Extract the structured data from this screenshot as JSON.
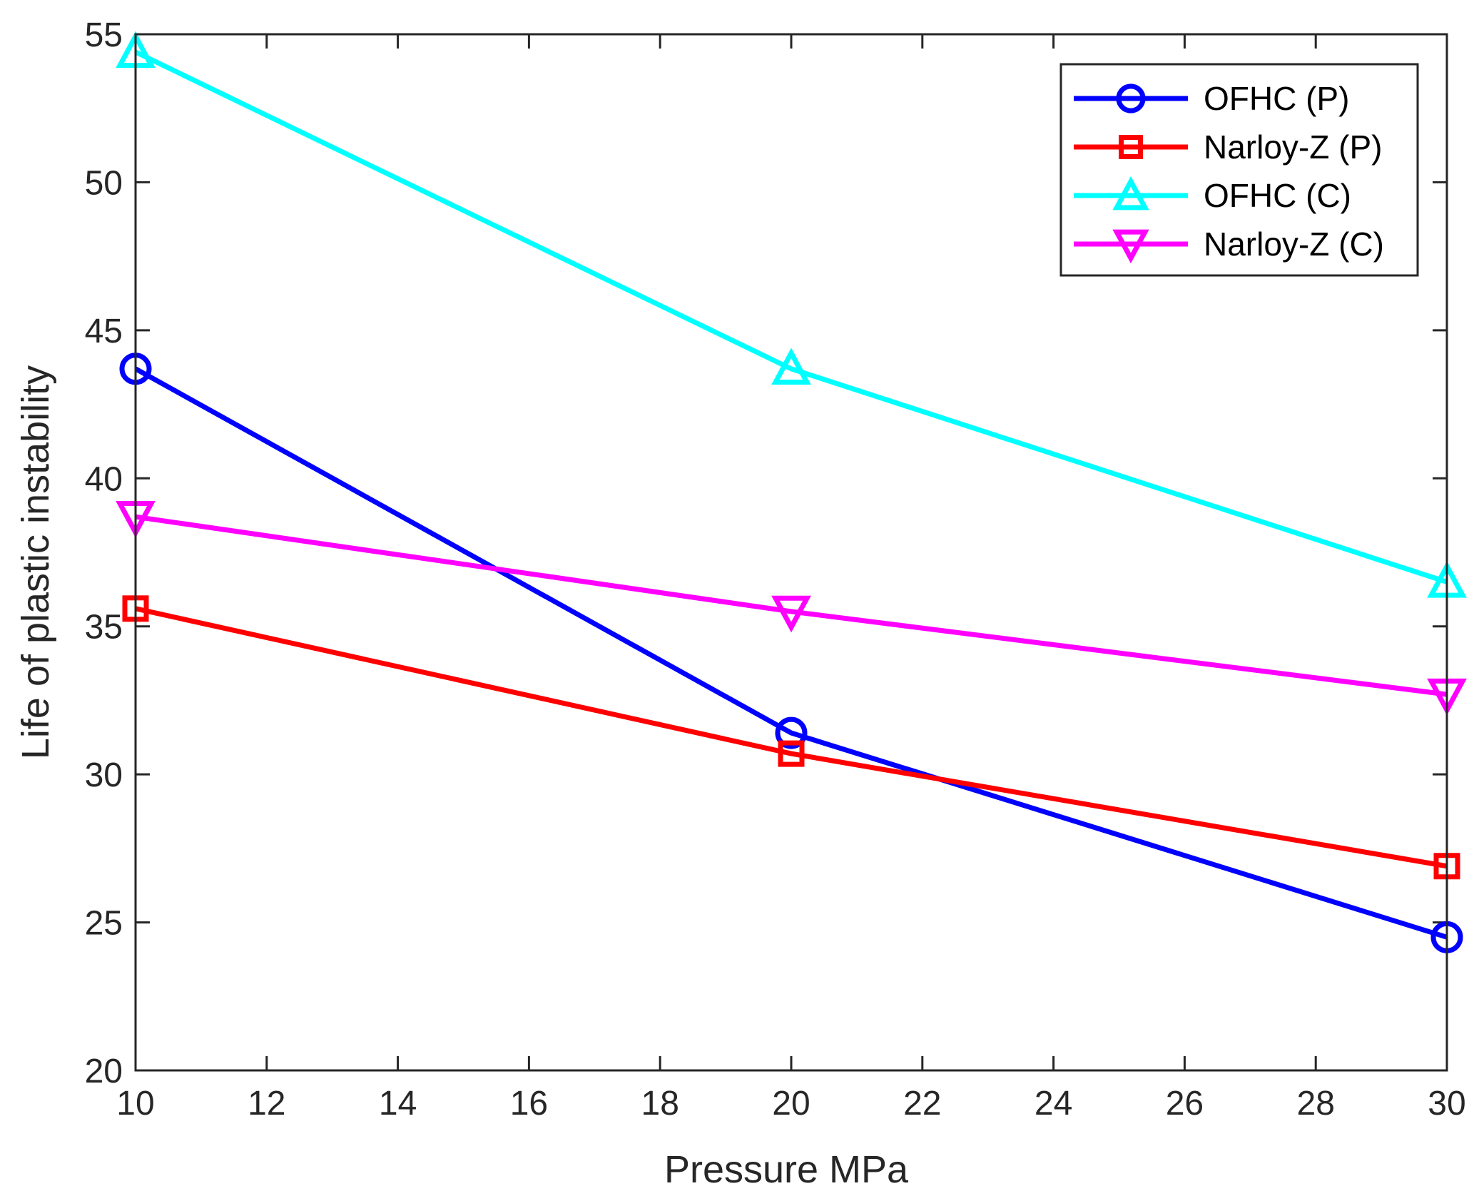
{
  "chart_data": {
    "type": "line",
    "title": "",
    "xlabel": "Pressure MPa",
    "ylabel": "Life of plastic instability",
    "xlim": [
      10,
      30
    ],
    "ylim": [
      20,
      55
    ],
    "xticks": [
      10,
      12,
      14,
      16,
      18,
      20,
      22,
      24,
      26,
      28,
      30
    ],
    "yticks": [
      20,
      25,
      30,
      35,
      40,
      45,
      50,
      55
    ],
    "grid": false,
    "legend_position": "top-right",
    "x": [
      10,
      20,
      30
    ],
    "series": [
      {
        "name": "OFHC (P)",
        "values": [
          43.7,
          31.4,
          24.5
        ],
        "color": "#0000ff",
        "marker": "circle"
      },
      {
        "name": "Narloy-Z (P)",
        "values": [
          35.6,
          30.7,
          26.9
        ],
        "color": "#ff0000",
        "marker": "square"
      },
      {
        "name": "OFHC (C)",
        "values": [
          54.4,
          43.7,
          36.5
        ],
        "color": "#00ffff",
        "marker": "triangle-up"
      },
      {
        "name": "Narloy-Z (C)",
        "values": [
          38.7,
          35.5,
          32.7
        ],
        "color": "#ff00ff",
        "marker": "triangle-down"
      }
    ]
  }
}
